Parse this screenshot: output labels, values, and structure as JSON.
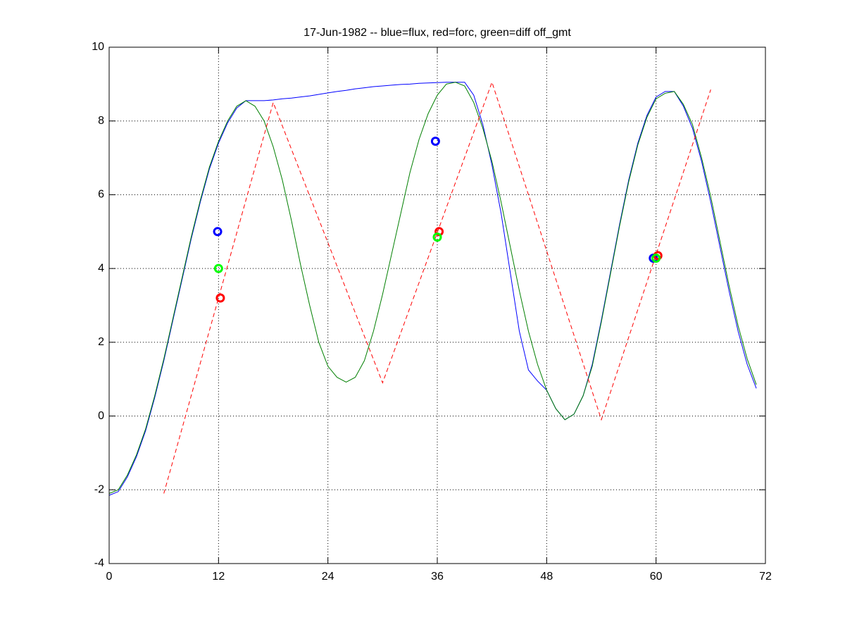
{
  "chart_data": {
    "type": "line",
    "title": "17-Jun-1982 -- blue=flux, red=forc, green=diff off_gmt",
    "xlim": [
      0,
      72
    ],
    "xticks": [
      0,
      12,
      24,
      36,
      48,
      60,
      72
    ],
    "ylim": [
      -4,
      10
    ],
    "yticks": [
      -4,
      -2,
      0,
      2,
      4,
      6,
      8,
      10
    ],
    "grid": true,
    "series": [
      {
        "color": "#0000ff",
        "style": "solid",
        "x": [
          0,
          1,
          2,
          3,
          4,
          5,
          6,
          7,
          8,
          9,
          10,
          11,
          12,
          13,
          14,
          15,
          16,
          17,
          18,
          19,
          20,
          21,
          22,
          23,
          24,
          25,
          26,
          27,
          28,
          29,
          30,
          31,
          32,
          33,
          34,
          35,
          36,
          37,
          38,
          39,
          40,
          41,
          42,
          43,
          44,
          45,
          46,
          47,
          48,
          49,
          50,
          51,
          52,
          53,
          54,
          55,
          56,
          57,
          58,
          59,
          60,
          61,
          62,
          63,
          64,
          65,
          66,
          67,
          68,
          69,
          70,
          71
        ],
        "values": [
          -2.15,
          -2.05,
          -1.65,
          -1.1,
          -0.4,
          0.5,
          1.5,
          2.6,
          3.7,
          4.8,
          5.8,
          6.7,
          7.4,
          7.95,
          8.35,
          8.55,
          8.55,
          8.55,
          8.57,
          8.6,
          8.62,
          8.65,
          8.68,
          8.72,
          8.76,
          8.8,
          8.83,
          8.87,
          8.9,
          8.93,
          8.95,
          8.97,
          8.99,
          9.0,
          9.02,
          9.03,
          9.04,
          9.05,
          9.05,
          9.05,
          8.7,
          7.9,
          6.8,
          5.5,
          3.9,
          2.3,
          1.25,
          0.95,
          0.7,
          0.2,
          -0.1,
          0.05,
          0.55,
          1.4,
          2.6,
          3.9,
          5.2,
          6.4,
          7.4,
          8.15,
          8.65,
          8.8,
          8.8,
          8.4,
          7.8,
          6.9,
          5.8,
          4.6,
          3.4,
          2.3,
          1.4,
          0.75
        ]
      },
      {
        "color": "#007f00",
        "style": "solid",
        "x": [
          0,
          1,
          2,
          3,
          4,
          5,
          6,
          7,
          8,
          9,
          10,
          11,
          12,
          13,
          14,
          15,
          16,
          17,
          18,
          19,
          20,
          21,
          22,
          23,
          24,
          25,
          26,
          27,
          28,
          29,
          30,
          31,
          32,
          33,
          34,
          35,
          36,
          37,
          38,
          39,
          40,
          41,
          42,
          43,
          44,
          45,
          46,
          47,
          48,
          49,
          50,
          51,
          52,
          53,
          54,
          55,
          56,
          57,
          58,
          59,
          60,
          61,
          62,
          63,
          64,
          65,
          66,
          67,
          68,
          69,
          70,
          71
        ],
        "values": [
          -2.1,
          -2.0,
          -1.6,
          -1.05,
          -0.35,
          0.55,
          1.55,
          2.65,
          3.75,
          4.85,
          5.85,
          6.75,
          7.45,
          8.0,
          8.4,
          8.55,
          8.4,
          8.0,
          7.3,
          6.4,
          5.3,
          4.1,
          3.0,
          2.0,
          1.35,
          1.05,
          0.92,
          1.05,
          1.5,
          2.3,
          3.3,
          4.4,
          5.5,
          6.6,
          7.5,
          8.2,
          8.7,
          9.0,
          9.05,
          8.95,
          8.5,
          7.8,
          6.9,
          5.8,
          4.6,
          3.4,
          2.3,
          1.4,
          0.7,
          0.2,
          -0.1,
          0.05,
          0.55,
          1.35,
          2.55,
          3.85,
          5.15,
          6.35,
          7.35,
          8.1,
          8.6,
          8.75,
          8.8,
          8.45,
          7.9,
          7.0,
          5.95,
          4.75,
          3.55,
          2.45,
          1.55,
          0.85
        ]
      },
      {
        "color": "#ff0000",
        "style": "dashed",
        "x": [
          6,
          18,
          30,
          42,
          54,
          66
        ],
        "values": [
          -2.1,
          8.5,
          0.9,
          9.05,
          -0.1,
          8.85
        ]
      },
      {
        "color": "#0000ff",
        "style": "none",
        "marker": "o",
        "x": [
          11.9,
          35.8,
          59.7
        ],
        "values": [
          5.0,
          7.45,
          4.28
        ]
      },
      {
        "color": "#ff0000",
        "style": "none",
        "marker": "o",
        "x": [
          12.2,
          36.2,
          60.2
        ],
        "values": [
          3.2,
          5.0,
          4.35
        ]
      },
      {
        "color": "#00ff00",
        "style": "none",
        "marker": "o",
        "x": [
          12.0,
          36.0,
          60.0
        ],
        "values": [
          4.0,
          4.85,
          4.28
        ]
      }
    ]
  }
}
